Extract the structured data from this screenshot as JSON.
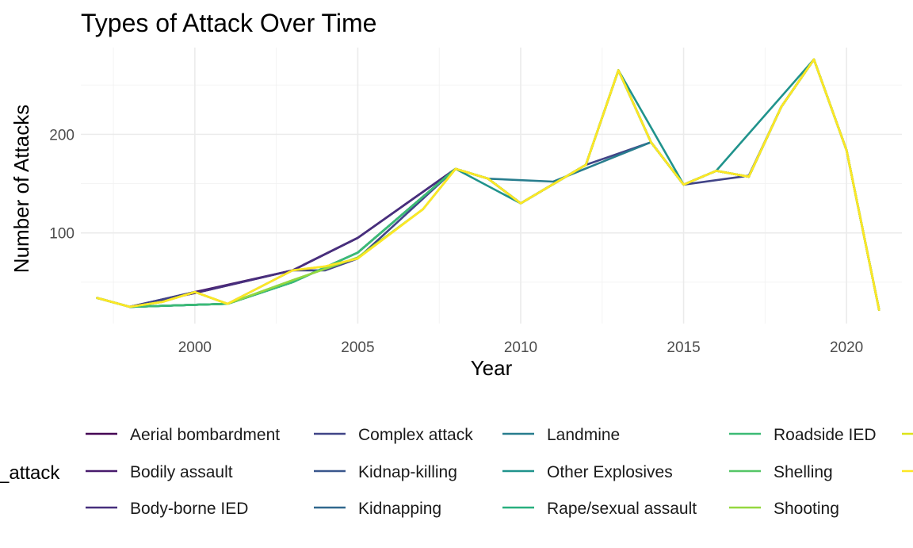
{
  "chart_data": {
    "type": "line",
    "title": "Types of Attack Over Time",
    "xlabel": "Year",
    "ylabel": "Number of Attacks",
    "legend_title": "_attack",
    "legend_position": "bottom",
    "grid": true,
    "xlim": [
      1996.5,
      2021.7
    ],
    "ylim": [
      8,
      288
    ],
    "x_ticks": [
      2000,
      2005,
      2010,
      2015,
      2020
    ],
    "y_ticks": [
      100,
      200
    ],
    "legend_entries": [
      "Aerial bombardment",
      "Complex attack",
      "Landmine",
      "Roadside IED",
      "Bodily assault",
      "Kidnap-killing",
      "Other Explosives",
      "Shelling",
      "Body-borne IED",
      "Kidnapping",
      "Rape/sexual assault",
      "Shooting"
    ],
    "series": [
      {
        "name": "Aerial bombardment",
        "color": "#440154",
        "points": [
          [
            1997,
            34
          ],
          [
            1998,
            25
          ],
          [
            2000,
            39
          ],
          [
            2003,
            62
          ],
          [
            2005,
            95
          ],
          [
            2008,
            165
          ],
          [
            2009,
            155
          ],
          [
            2010,
            130
          ],
          [
            2012,
            169
          ],
          [
            2013,
            265
          ],
          [
            2014,
            192
          ],
          [
            2015,
            149
          ],
          [
            2016,
            163
          ],
          [
            2017,
            157
          ],
          [
            2018,
            228
          ],
          [
            2019,
            276
          ],
          [
            2020,
            184
          ],
          [
            2021,
            22
          ]
        ]
      },
      {
        "name": "Bodily assault",
        "color": "#481A6C",
        "points": [
          [
            1997,
            34
          ],
          [
            1998,
            25
          ],
          [
            2000,
            40
          ],
          [
            2003,
            62
          ],
          [
            2005,
            95
          ],
          [
            2008,
            165
          ],
          [
            2009,
            155
          ],
          [
            2010,
            130
          ],
          [
            2012,
            169
          ],
          [
            2013,
            265
          ],
          [
            2014,
            192
          ],
          [
            2015,
            149
          ],
          [
            2016,
            163
          ],
          [
            2017,
            157
          ],
          [
            2018,
            228
          ],
          [
            2019,
            276
          ],
          [
            2020,
            184
          ],
          [
            2021,
            22
          ]
        ]
      },
      {
        "name": "Body-borne IED",
        "color": "#472F7D",
        "points": [
          [
            1997,
            34
          ],
          [
            1998,
            25
          ],
          [
            2000,
            39
          ],
          [
            2003,
            62
          ],
          [
            2005,
            95
          ],
          [
            2008,
            165
          ],
          [
            2009,
            155
          ],
          [
            2010,
            130
          ],
          [
            2012,
            169
          ],
          [
            2013,
            265
          ],
          [
            2014,
            192
          ],
          [
            2015,
            149
          ],
          [
            2016,
            163
          ],
          [
            2017,
            157
          ],
          [
            2018,
            228
          ],
          [
            2019,
            276
          ],
          [
            2020,
            184
          ],
          [
            2021,
            22
          ]
        ]
      },
      {
        "name": "Complex attack",
        "color": "#414487",
        "points": [
          [
            1997,
            34
          ],
          [
            1998,
            25
          ],
          [
            2000,
            40
          ],
          [
            2001,
            28
          ],
          [
            2003,
            62
          ],
          [
            2004,
            62
          ],
          [
            2005,
            74
          ],
          [
            2008,
            165
          ],
          [
            2009,
            155
          ],
          [
            2010,
            130
          ],
          [
            2012,
            169
          ],
          [
            2014,
            192
          ],
          [
            2015,
            149
          ],
          [
            2017,
            158
          ],
          [
            2018,
            228
          ],
          [
            2019,
            276
          ],
          [
            2020,
            184
          ],
          [
            2021,
            22
          ]
        ]
      },
      {
        "name": "Kidnap-killing",
        "color": "#39568C",
        "points": [
          [
            1997,
            34
          ],
          [
            1998,
            25
          ],
          [
            2001,
            28
          ],
          [
            2003,
            50
          ],
          [
            2005,
            80
          ],
          [
            2008,
            165
          ],
          [
            2009,
            155
          ],
          [
            2010,
            130
          ],
          [
            2012,
            169
          ],
          [
            2013,
            265
          ],
          [
            2014,
            192
          ],
          [
            2015,
            149
          ],
          [
            2016,
            163
          ],
          [
            2017,
            157
          ],
          [
            2018,
            228
          ],
          [
            2019,
            276
          ],
          [
            2020,
            184
          ],
          [
            2021,
            22
          ]
        ]
      },
      {
        "name": "Kidnapping",
        "color": "#31688E",
        "points": [
          [
            1997,
            34
          ],
          [
            1998,
            25
          ],
          [
            2001,
            28
          ],
          [
            2003,
            50
          ],
          [
            2005,
            80
          ],
          [
            2008,
            165
          ],
          [
            2009,
            155
          ],
          [
            2010,
            130
          ],
          [
            2012,
            169
          ],
          [
            2013,
            265
          ],
          [
            2014,
            192
          ],
          [
            2015,
            149
          ],
          [
            2016,
            163
          ],
          [
            2017,
            157
          ],
          [
            2018,
            228
          ],
          [
            2019,
            276
          ],
          [
            2020,
            184
          ],
          [
            2021,
            22
          ]
        ]
      },
      {
        "name": "Landmine",
        "color": "#287D8E",
        "points": [
          [
            1997,
            34
          ],
          [
            1998,
            25
          ],
          [
            2001,
            28
          ],
          [
            2003,
            50
          ],
          [
            2005,
            80
          ],
          [
            2008,
            165
          ],
          [
            2009,
            155
          ],
          [
            2011,
            152
          ],
          [
            2014,
            192
          ],
          [
            2015,
            149
          ],
          [
            2016,
            163
          ],
          [
            2017,
            157
          ],
          [
            2018,
            228
          ],
          [
            2019,
            276
          ],
          [
            2020,
            184
          ],
          [
            2021,
            22
          ]
        ]
      },
      {
        "name": "Other Explosives",
        "color": "#20938C",
        "points": [
          [
            1997,
            34
          ],
          [
            1998,
            25
          ],
          [
            2001,
            28
          ],
          [
            2003,
            50
          ],
          [
            2005,
            80
          ],
          [
            2008,
            165
          ],
          [
            2010,
            130
          ],
          [
            2012,
            169
          ],
          [
            2013,
            265
          ],
          [
            2015,
            149
          ],
          [
            2016,
            163
          ],
          [
            2019,
            276
          ],
          [
            2020,
            184
          ],
          [
            2021,
            22
          ]
        ]
      },
      {
        "name": "Rape/sexual assault",
        "color": "#29AF7F",
        "points": [
          [
            1997,
            34
          ],
          [
            1998,
            25
          ],
          [
            2001,
            28
          ],
          [
            2003,
            50
          ],
          [
            2005,
            80
          ],
          [
            2008,
            165
          ],
          [
            2009,
            155
          ],
          [
            2010,
            130
          ],
          [
            2012,
            169
          ],
          [
            2013,
            265
          ],
          [
            2014,
            192
          ],
          [
            2015,
            149
          ],
          [
            2016,
            163
          ],
          [
            2017,
            157
          ],
          [
            2018,
            228
          ],
          [
            2019,
            276
          ],
          [
            2020,
            184
          ],
          [
            2021,
            22
          ]
        ]
      },
      {
        "name": "Roadside IED",
        "color": "#3CBB75",
        "points": [
          [
            1997,
            34
          ],
          [
            1998,
            25
          ],
          [
            2001,
            28
          ],
          [
            2003,
            50
          ],
          [
            2005,
            80
          ],
          [
            2008,
            165
          ],
          [
            2009,
            155
          ],
          [
            2010,
            130
          ],
          [
            2012,
            169
          ],
          [
            2013,
            265
          ],
          [
            2014,
            192
          ],
          [
            2015,
            149
          ],
          [
            2016,
            163
          ],
          [
            2017,
            157
          ],
          [
            2018,
            228
          ],
          [
            2019,
            276
          ],
          [
            2020,
            184
          ],
          [
            2021,
            22
          ]
        ]
      },
      {
        "name": "Shelling",
        "color": "#55C667",
        "points": [
          [
            1997,
            34
          ],
          [
            1998,
            25
          ],
          [
            1999,
            30
          ],
          [
            2000,
            40
          ],
          [
            2001,
            28
          ],
          [
            2003,
            52
          ],
          [
            2005,
            75
          ],
          [
            2007,
            124
          ],
          [
            2008,
            165
          ],
          [
            2009,
            155
          ],
          [
            2010,
            130
          ],
          [
            2012,
            169
          ],
          [
            2013,
            265
          ],
          [
            2014,
            192
          ],
          [
            2015,
            149
          ],
          [
            2016,
            163
          ],
          [
            2017,
            157
          ],
          [
            2018,
            228
          ],
          [
            2019,
            276
          ],
          [
            2020,
            184
          ],
          [
            2021,
            22
          ]
        ]
      },
      {
        "name": "Shooting",
        "color": "#95D840",
        "points": [
          [
            1997,
            34
          ],
          [
            1998,
            25
          ],
          [
            1999,
            30
          ],
          [
            2000,
            40
          ],
          [
            2001,
            28
          ],
          [
            2003,
            52
          ],
          [
            2005,
            75
          ],
          [
            2007,
            124
          ],
          [
            2008,
            165
          ],
          [
            2009,
            155
          ],
          [
            2010,
            130
          ],
          [
            2012,
            169
          ],
          [
            2013,
            265
          ],
          [
            2014,
            192
          ],
          [
            2015,
            149
          ],
          [
            2016,
            163
          ],
          [
            2017,
            157
          ],
          [
            2018,
            228
          ],
          [
            2019,
            276
          ],
          [
            2020,
            184
          ],
          [
            2021,
            22
          ]
        ]
      },
      {
        "color": "#DCE319",
        "points": [
          [
            1997,
            34
          ],
          [
            1998,
            25
          ],
          [
            1999,
            30
          ],
          [
            2000,
            40
          ],
          [
            2001,
            28
          ],
          [
            2003,
            62
          ],
          [
            2004,
            66
          ],
          [
            2005,
            74
          ],
          [
            2007,
            124
          ],
          [
            2008,
            165
          ],
          [
            2009,
            155
          ],
          [
            2010,
            130
          ],
          [
            2012,
            169
          ],
          [
            2013,
            265
          ],
          [
            2014,
            192
          ],
          [
            2015,
            149
          ],
          [
            2016,
            163
          ],
          [
            2017,
            157
          ],
          [
            2018,
            228
          ],
          [
            2019,
            276
          ],
          [
            2020,
            184
          ],
          [
            2021,
            22
          ]
        ]
      },
      {
        "color": "#FDE725",
        "points": [
          [
            1997,
            34
          ],
          [
            1998,
            25
          ],
          [
            1999,
            30
          ],
          [
            2000,
            40
          ],
          [
            2001,
            28
          ],
          [
            2003,
            62
          ],
          [
            2004,
            66
          ],
          [
            2005,
            74
          ],
          [
            2007,
            124
          ],
          [
            2008,
            165
          ],
          [
            2009,
            155
          ],
          [
            2010,
            130
          ],
          [
            2012,
            169
          ],
          [
            2013,
            265
          ],
          [
            2014,
            192
          ],
          [
            2015,
            149
          ],
          [
            2016,
            163
          ],
          [
            2017,
            157
          ],
          [
            2018,
            228
          ],
          [
            2019,
            276
          ],
          [
            2020,
            184
          ],
          [
            2021,
            22
          ]
        ]
      }
    ]
  }
}
